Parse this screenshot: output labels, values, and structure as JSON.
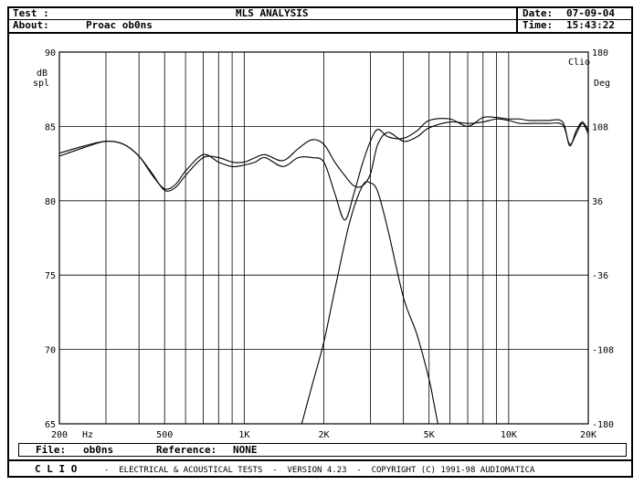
{
  "header": {
    "test_label": "Test :",
    "test_value": "",
    "about_label": "About:",
    "about_value": "Proac ob0ns",
    "title": "MLS ANALYSIS",
    "date_label": "Date:",
    "date_value": "07-09-04",
    "time_label": "Time:",
    "time_value": "15:43:22"
  },
  "file_bar": {
    "file_label": "File:",
    "file_value": "ob0ns",
    "reference_label": "Reference:",
    "reference_value": "NONE"
  },
  "footer": {
    "brand": "C L I O",
    "text": "-  ELECTRICAL & ACOUSTICAL TESTS  -  VERSION 4.23  -  COPYRIGHT (C) 1991-98 AUDIOMATICA"
  },
  "chart_data": {
    "type": "line",
    "xscale": "log",
    "xlim": [
      200,
      20000
    ],
    "ylim": [
      65,
      90
    ],
    "y2lim": [
      -180,
      180
    ],
    "left_axis_label_line1": "dB",
    "left_axis_label_line2": "spl",
    "right_axis_label": "Deg",
    "corner_label": "Clio",
    "x_tick_labels": [
      {
        "x": 200,
        "label": "200"
      },
      {
        "x": 500,
        "label": "500"
      },
      {
        "x": 1000,
        "label": "1K"
      },
      {
        "x": 2000,
        "label": "2K"
      },
      {
        "x": 5000,
        "label": "5K"
      },
      {
        "x": 10000,
        "label": "10K"
      },
      {
        "x": 20000,
        "label": "20K"
      }
    ],
    "x_unit_label": "Hz",
    "y_ticks": [
      65,
      70,
      75,
      80,
      85,
      90
    ],
    "y2_ticks": [
      -180,
      -108,
      -36,
      36,
      108,
      180
    ],
    "grid": true,
    "series": [
      {
        "x": [
          200,
          250,
          300,
          350,
          400,
          450,
          500,
          550,
          600,
          700,
          800,
          900,
          1000,
          1100,
          1200,
          1400,
          1600,
          1800,
          2000,
          2200,
          2400,
          2600,
          2800,
          3000,
          3200,
          3500,
          4000,
          4500,
          5000,
          6000,
          7000,
          8000,
          9000,
          10000,
          11000,
          12000,
          14000,
          16000,
          17000,
          18000,
          19000,
          20000
        ],
        "y": [
          83.0,
          83.6,
          84.0,
          83.8,
          83.0,
          81.8,
          80.7,
          80.9,
          81.7,
          82.9,
          82.9,
          82.6,
          82.6,
          82.9,
          83.1,
          82.7,
          83.5,
          84.1,
          83.8,
          82.6,
          81.7,
          81.0,
          81.0,
          81.8,
          83.8,
          84.6,
          84.0,
          84.3,
          84.9,
          85.3,
          85.2,
          85.3,
          85.5,
          85.4,
          85.2,
          85.2,
          85.2,
          85.1,
          83.8,
          84.5,
          85.2,
          84.5
        ]
      },
      {
        "x": [
          200,
          250,
          300,
          350,
          400,
          450,
          500,
          550,
          600,
          700,
          800,
          900,
          1000,
          1100,
          1200,
          1400,
          1600,
          1800,
          2000,
          2200,
          2400,
          2600,
          2800,
          3000,
          3200,
          3500,
          4000,
          4500,
          5000,
          6000,
          7000,
          8000,
          9000,
          10000,
          11000,
          12000,
          14000,
          16000,
          17000,
          18000,
          19000,
          20000
        ],
        "y": [
          83.2,
          83.7,
          84.0,
          83.8,
          83.0,
          81.7,
          80.8,
          81.1,
          82.0,
          83.1,
          82.6,
          82.3,
          82.4,
          82.6,
          82.9,
          82.3,
          82.9,
          82.9,
          82.6,
          80.5,
          78.7,
          80.5,
          82.5,
          84.0,
          84.8,
          84.3,
          84.2,
          84.7,
          85.4,
          85.5,
          85.0,
          85.6,
          85.6,
          85.5,
          85.5,
          85.4,
          85.4,
          85.3,
          83.7,
          84.7,
          85.3,
          84.7
        ]
      },
      {
        "x": [
          1650,
          1800,
          2000,
          2200,
          2500,
          2800,
          3000,
          3200,
          3500,
          4000,
          4500,
          5000,
          5200,
          5400
        ],
        "y": [
          65.0,
          67.5,
          70.5,
          74.0,
          78.5,
          81.0,
          81.2,
          80.6,
          78.0,
          73.5,
          71.0,
          68.0,
          66.5,
          65.0
        ]
      }
    ]
  }
}
